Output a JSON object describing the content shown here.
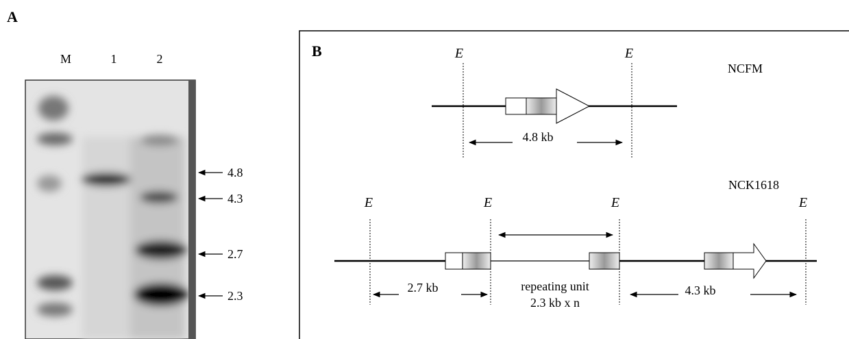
{
  "panel_a": {
    "label": "A",
    "lanes": [
      "M",
      "1",
      "2"
    ],
    "markers": [
      "4.8",
      "4.3",
      "2.7",
      "2.3"
    ]
  },
  "panel_b": {
    "label": "B",
    "ncfm": {
      "name": "NCFM",
      "sites": [
        "E",
        "E"
      ],
      "length": "4.8 kb"
    },
    "nck1618": {
      "name": "NCK1618",
      "sites": [
        "E",
        "E",
        "E",
        "E"
      ],
      "flank_left": "2.7 kb",
      "repeat_label": "repeating unit",
      "repeat_length": "2.3 kb x n",
      "flank_right": "4.3 kb"
    }
  }
}
